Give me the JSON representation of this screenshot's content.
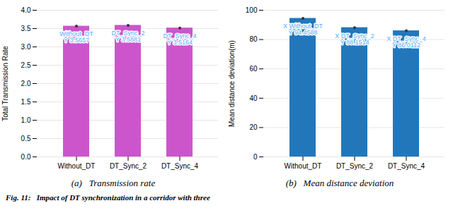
{
  "caption": "Fig. 11:   Impact of DT synchronization in a corridor with three",
  "chart_data": [
    {
      "type": "bar",
      "title": "(a)   Transmission rate",
      "categories": [
        "Without_DT",
        "DT_Sync_2",
        "DT_Sync_4"
      ],
      "values": [
        3.5657,
        3.5881,
        3.5164
      ],
      "color": "#CC55CC",
      "ylabel": "Total Transmission Rate",
      "ylim": [
        0,
        4
      ],
      "yticks": [
        {
          "value": 0,
          "label": "0.0"
        },
        0.5,
        {
          "value": 1.0,
          "label": "1.0"
        },
        1.5,
        {
          "value": 2.0,
          "label": "2.0"
        },
        2.5,
        {
          "value": 3.0,
          "label": "3.0"
        },
        3.5,
        {
          "value": 4.0,
          "label": "4.0"
        }
      ],
      "grid": true,
      "annotations": [
        {
          "category": "Without_DT",
          "value": 3.5657,
          "text": "Without_DT\nY 3.5657",
          "color": "#55AAFF"
        },
        {
          "category": "DT_Sync_2",
          "value": 3.5881,
          "text": "DT_Sync_2\nY 3.5881",
          "color": "#55AAFF"
        },
        {
          "category": "DT_Sync_4",
          "value": 3.5164,
          "text": "DT_Sync_4\nY 3.5164",
          "color": "#55AAFF"
        }
      ]
    },
    {
      "type": "bar",
      "title": "(b)   Mean distance deviation",
      "categories": [
        "Without_DT",
        "DT_Sync_2",
        "DT_Sync_4"
      ],
      "values": [
        94.4588,
        88.1514,
        86.0112
      ],
      "color": "#2277BB",
      "ylabel": "Mean distance deviation(m)",
      "ylim": [
        0,
        100
      ],
      "yticks": [
        0,
        20,
        40,
        60,
        80,
        100
      ],
      "grid": true,
      "annotations": [
        {
          "category": "Without_DT",
          "value": 94.4588,
          "text": "X Without_DT\nY 94.4588",
          "color": "#55AAFF"
        },
        {
          "category": "DT_Sync_2",
          "value": 88.1514,
          "text": "X DT_Sync_2\nY 88.1514",
          "color": "#55AAFF"
        },
        {
          "category": "DT_Sync_4",
          "value": 86.0112,
          "text": "X DT_Sync_4\nY 86.0112",
          "color": "#55AAFF"
        }
      ]
    }
  ]
}
